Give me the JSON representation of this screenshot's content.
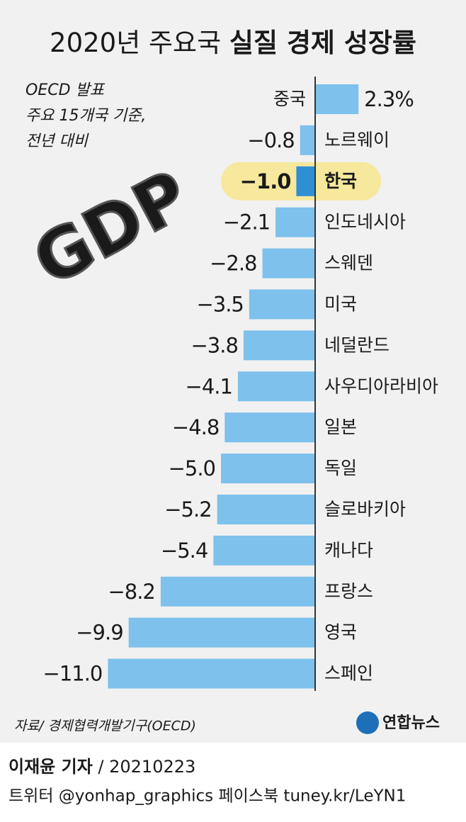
{
  "chart_data": {
    "type": "bar",
    "title": [
      "2020년 주요국",
      "실질 경제 성장률"
    ],
    "subtitle": [
      "OECD 발표",
      "주요 15개국 기준,",
      "전년 대비"
    ],
    "icon_text": "GDP",
    "categories": [
      "중국",
      "노르웨이",
      "한국",
      "인도네시아",
      "스웨덴",
      "미국",
      "네덜란드",
      "사우디아라비아",
      "일본",
      "독일",
      "슬로바키아",
      "캐나다",
      "프랑스",
      "영국",
      "스페인"
    ],
    "values": [
      2.3,
      -0.8,
      -1.0,
      -2.1,
      -2.8,
      -3.5,
      -3.8,
      -4.1,
      -4.8,
      -5.0,
      -5.2,
      -5.4,
      -8.2,
      -9.9,
      -11.0
    ],
    "value_labels": [
      "2.3%",
      "−0.8",
      "−1.0",
      "−2.1",
      "−2.8",
      "−3.5",
      "−3.8",
      "−4.1",
      "−4.8",
      "−5.0",
      "−5.2",
      "−5.4",
      "−8.2",
      "−9.9",
      "−11.0"
    ],
    "colors": [
      "#7dc1ec",
      "#7dc1ec",
      "#2e8fd3",
      "#7dc1ec",
      "#7dc1ec",
      "#7dc1ec",
      "#7dc1ec",
      "#7dc1ec",
      "#7dc1ec",
      "#7dc1ec",
      "#7dc1ec",
      "#7dc1ec",
      "#7dc1ec",
      "#7dc1ec",
      "#7dc1ec"
    ],
    "highlight": 2,
    "source": "자료/ 경제협력개발기구(OECD)",
    "logo": "연합뉴스",
    "credit": [
      "이재윤 기자",
      " / 20210223"
    ],
    "social": "트위터 @yonhap_graphics  페이스북 tuney.kr/LeYN1"
  }
}
